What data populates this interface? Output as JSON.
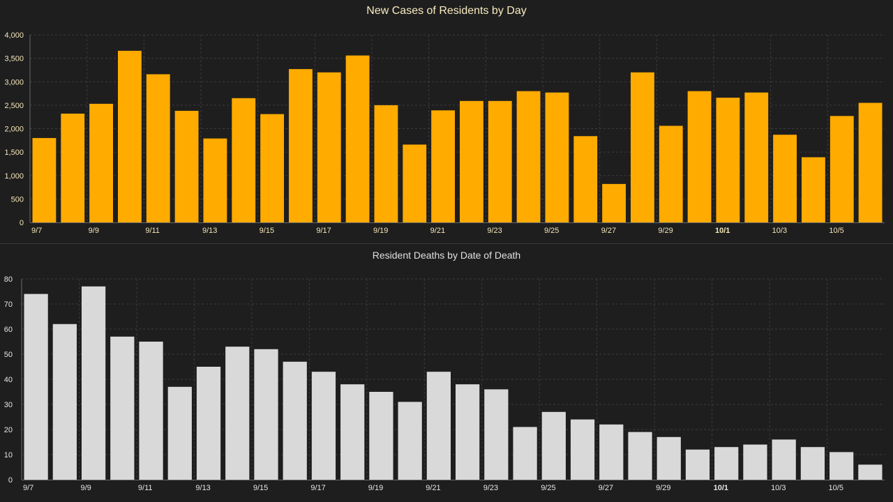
{
  "colors": {
    "background": "#1e1e1e",
    "cases_bar": "#ffab00",
    "deaths_bar": "#d9d9d9",
    "grid": "#3c3c3c",
    "axis_text_cases": "#f5e6b8",
    "axis_text_deaths": "#e6e6e6"
  },
  "chart_data": [
    {
      "type": "bar",
      "title": "New Cases of Residents by Day",
      "xlabel": "",
      "ylabel": "",
      "ylim": [
        0,
        4000
      ],
      "yticks": [
        0,
        500,
        1000,
        1500,
        2000,
        2500,
        3000,
        3500,
        4000
      ],
      "ytick_labels": [
        "0",
        "500",
        "1,000",
        "1,500",
        "2,000",
        "2,500",
        "3,000",
        "3,500",
        "4,000"
      ],
      "categories": [
        "9/7",
        "9/8",
        "9/9",
        "9/10",
        "9/11",
        "9/12",
        "9/13",
        "9/14",
        "9/15",
        "9/16",
        "9/17",
        "9/18",
        "9/19",
        "9/20",
        "9/21",
        "9/22",
        "9/23",
        "9/24",
        "9/25",
        "9/26",
        "9/27",
        "9/28",
        "9/29",
        "9/30",
        "10/1",
        "10/2",
        "10/3",
        "10/4",
        "10/5",
        "10/6"
      ],
      "xtick_labels": [
        "9/7",
        "9/9",
        "9/11",
        "9/13",
        "9/15",
        "9/17",
        "9/19",
        "9/21",
        "9/23",
        "9/25",
        "9/27",
        "9/29",
        "10/1",
        "10/3",
        "10/5"
      ],
      "bold_xtick": "10/1",
      "values": [
        1800,
        2320,
        2530,
        3660,
        3160,
        2380,
        1790,
        2650,
        2310,
        3270,
        3200,
        3560,
        2500,
        1660,
        2390,
        2590,
        2590,
        2800,
        2770,
        1840,
        820,
        3200,
        2060,
        2800,
        2660,
        2770,
        1870,
        1390,
        2270,
        2550
      ],
      "grid": true
    },
    {
      "type": "bar",
      "title": "Resident Deaths by Date of Death",
      "xlabel": "",
      "ylabel": "",
      "ylim": [
        0,
        80
      ],
      "yticks": [
        0,
        10,
        20,
        30,
        40,
        50,
        60,
        70,
        80
      ],
      "ytick_labels": [
        "0",
        "10",
        "20",
        "30",
        "40",
        "50",
        "60",
        "70",
        "80"
      ],
      "categories": [
        "9/7",
        "9/8",
        "9/9",
        "9/10",
        "9/11",
        "9/12",
        "9/13",
        "9/14",
        "9/15",
        "9/16",
        "9/17",
        "9/18",
        "9/19",
        "9/20",
        "9/21",
        "9/22",
        "9/23",
        "9/24",
        "9/25",
        "9/26",
        "9/27",
        "9/28",
        "9/29",
        "9/30",
        "10/1",
        "10/2",
        "10/3",
        "10/4",
        "10/5",
        "10/6"
      ],
      "xtick_labels": [
        "9/7",
        "9/9",
        "9/11",
        "9/13",
        "9/15",
        "9/17",
        "9/19",
        "9/21",
        "9/23",
        "9/25",
        "9/27",
        "9/29",
        "10/1",
        "10/3",
        "10/5"
      ],
      "bold_xtick": "10/1",
      "values": [
        74,
        62,
        77,
        57,
        55,
        37,
        45,
        53,
        52,
        47,
        43,
        38,
        35,
        31,
        43,
        38,
        36,
        21,
        27,
        24,
        22,
        19,
        17,
        12,
        13,
        14,
        16,
        13,
        11,
        6
      ],
      "grid": true
    }
  ]
}
